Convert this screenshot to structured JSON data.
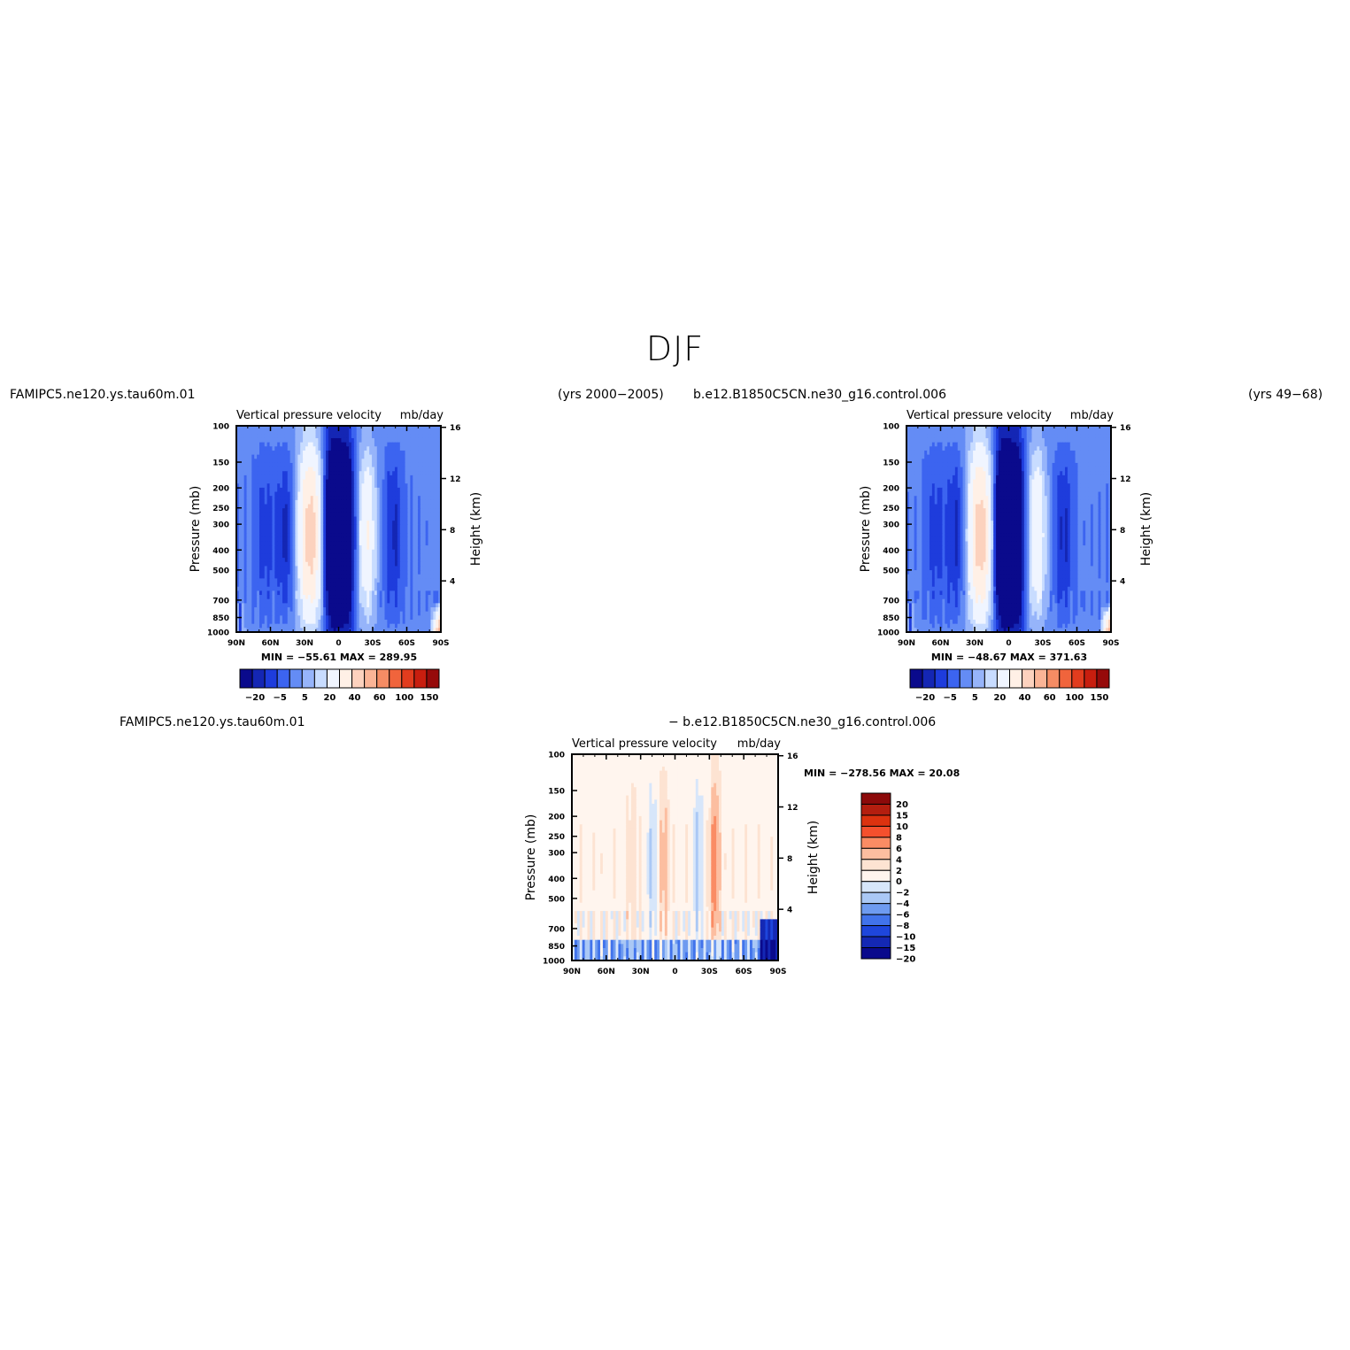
{
  "title": "DJF",
  "panels": [
    {
      "case_name": "FAMIPC5.ne120.ys.tau60m.01",
      "years": "(yrs 2000−2005)",
      "plot_title": "Vertical  pressure  velocity",
      "units": "mb/day",
      "stats": "MIN = −55.61   MAX = 289.95"
    },
    {
      "case_name": "b.e12.B1850C5CN.ne30_g16.control.006",
      "years": "(yrs 49−68)",
      "plot_title": "Vertical  pressure  velocity",
      "units": "mb/day",
      "stats": "MIN = −48.67   MAX = 371.63"
    },
    {
      "case_name": "FAMIPC5.ne120.ys.tau60m.01",
      "case_name_2": "− b.e12.B1850C5CN.ne30_g16.control.006",
      "plot_title": "Vertical  pressure  velocity",
      "units": "mb/day",
      "stats": "MIN = −278.56   MAX =   20.08"
    }
  ],
  "axes": {
    "ylabel_left": "Pressure  (mb)",
    "ylabel_right": "Height  (km)"
  },
  "chart_data": [
    {
      "type": "heatmap",
      "title": "Vertical  pressure  velocity",
      "units": "mb/day",
      "x_ticks": [
        "90N",
        "60N",
        "30N",
        "0",
        "30S",
        "60S",
        "90S"
      ],
      "x_values": [
        90,
        60,
        30,
        0,
        -30,
        -60,
        -90
      ],
      "y_ticks": [
        "100",
        "150",
        "200",
        "250",
        "300",
        "400",
        "500",
        "700",
        "850",
        "1000"
      ],
      "y_values": [
        100,
        150,
        200,
        250,
        300,
        400,
        500,
        700,
        850,
        1000
      ],
      "y_scale": "log",
      "y_right_ticks": [
        "16",
        "12",
        "8",
        "4"
      ],
      "y_right_values": [
        16,
        12,
        8,
        4
      ],
      "colorbar_labels": [
        "−20",
        "−5",
        "5",
        "20",
        "40",
        "60",
        "100",
        "150"
      ],
      "colorbar_colors": [
        "#0a0a8c",
        "#1426b4",
        "#1e3cdc",
        "#3c64f0",
        "#648cf5",
        "#96b4fa",
        "#c8dcff",
        "#f0f5ff",
        "#fff0e6",
        "#fcd2be",
        "#fab496",
        "#f58c64",
        "#f0643c",
        "#e13c1e",
        "#c81e0f",
        "#960a0a"
      ],
      "min": -55.61,
      "max": 289.95
    },
    {
      "type": "heatmap",
      "title": "Vertical  pressure  velocity",
      "units": "mb/day",
      "x_ticks": [
        "90N",
        "60N",
        "30N",
        "0",
        "30S",
        "60S",
        "90S"
      ],
      "x_values": [
        90,
        60,
        30,
        0,
        -30,
        -60,
        -90
      ],
      "y_ticks": [
        "100",
        "150",
        "200",
        "250",
        "300",
        "400",
        "500",
        "700",
        "850",
        "1000"
      ],
      "y_values": [
        100,
        150,
        200,
        250,
        300,
        400,
        500,
        700,
        850,
        1000
      ],
      "y_scale": "log",
      "y_right_ticks": [
        "16",
        "12",
        "8",
        "4"
      ],
      "y_right_values": [
        16,
        12,
        8,
        4
      ],
      "colorbar_labels": [
        "−20",
        "−5",
        "5",
        "20",
        "40",
        "60",
        "100",
        "150"
      ],
      "colorbar_colors": [
        "#0a0a8c",
        "#1426b4",
        "#1e3cdc",
        "#3c64f0",
        "#648cf5",
        "#96b4fa",
        "#c8dcff",
        "#f0f5ff",
        "#fff0e6",
        "#fcd2be",
        "#fab496",
        "#f58c64",
        "#f0643c",
        "#e13c1e",
        "#c81e0f",
        "#960a0a"
      ],
      "min": -48.67,
      "max": 371.63
    },
    {
      "type": "heatmap",
      "title": "Vertical  pressure  velocity",
      "units": "mb/day",
      "x_ticks": [
        "90N",
        "60N",
        "30N",
        "0",
        "30S",
        "60S",
        "90S"
      ],
      "x_values": [
        90,
        60,
        30,
        0,
        -30,
        -60,
        -90
      ],
      "y_ticks": [
        "100",
        "150",
        "200",
        "250",
        "300",
        "400",
        "500",
        "700",
        "850",
        "1000"
      ],
      "y_values": [
        100,
        150,
        200,
        250,
        300,
        400,
        500,
        700,
        850,
        1000
      ],
      "y_scale": "log",
      "y_right_ticks": [
        "16",
        "12",
        "8",
        "4"
      ],
      "y_right_values": [
        16,
        12,
        8,
        4
      ],
      "colorbar_labels": [
        "20",
        "15",
        "10",
        "8",
        "6",
        "4",
        "2",
        "0",
        "−2",
        "−4",
        "−6",
        "−8",
        "−10",
        "−15",
        "−20"
      ],
      "colorbar_colors": [
        "#8c0a0a",
        "#b41e0f",
        "#dc320f",
        "#f5502d",
        "#fa8c64",
        "#fcbea0",
        "#fde3d2",
        "#fff5ee",
        "#d7e6fa",
        "#aac8f5",
        "#6e9bf0",
        "#4173eb",
        "#1e46dc",
        "#1428b4",
        "#0a0a8c"
      ],
      "min": -278.56,
      "max": 20.08
    }
  ]
}
